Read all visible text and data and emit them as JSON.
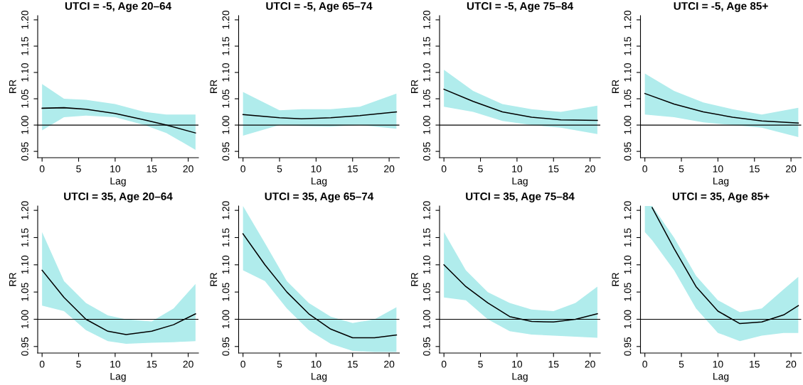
{
  "chart_data": [
    {
      "type": "line",
      "title": "UTCI = -5, Age 20–64",
      "xlabel": "Lag",
      "ylabel": "RR",
      "x": [
        0,
        3,
        6,
        10,
        14,
        17,
        21
      ],
      "xlim": [
        -0.6,
        21.4
      ],
      "ylim": [
        0.938,
        1.208
      ],
      "xticks": [
        0,
        5,
        10,
        15,
        20
      ],
      "yticks": [
        0.95,
        {
          "value": 1.0,
          "label": "1.00"
        },
        1.05,
        {
          "value": 1.1,
          "label": "1.10"
        },
        1.15,
        {
          "value": 1.2,
          "label": "1.20"
        }
      ],
      "grid": false,
      "ref_lines": [
        {
          "axis": "y",
          "value": 1,
          "color": "#000000"
        }
      ],
      "series": [
        {
          "color": "#000000",
          "values": [
            1.032,
            1.033,
            1.03,
            1.022,
            1.01,
            1.0,
            0.985
          ],
          "lower": [
            0.99,
            1.015,
            1.018,
            1.015,
            1.0,
            0.985,
            0.953
          ],
          "upper": [
            1.078,
            1.05,
            1.048,
            1.04,
            1.025,
            1.02,
            1.02
          ]
        }
      ]
    },
    {
      "type": "line",
      "title": "UTCI = -5, Age 65–74",
      "xlabel": "Lag",
      "ylabel": "RR",
      "x": [
        0,
        5,
        8,
        12,
        16,
        21
      ],
      "xlim": [
        -0.6,
        21.4
      ],
      "ylim": [
        0.938,
        1.208
      ],
      "xticks": [
        0,
        5,
        10,
        15,
        20
      ],
      "yticks": [
        0.95,
        {
          "value": 1.0,
          "label": "1.00"
        },
        1.05,
        {
          "value": 1.1,
          "label": "1.10"
        },
        1.15,
        {
          "value": 1.2,
          "label": "1.20"
        }
      ],
      "grid": false,
      "ref_lines": [
        {
          "axis": "y",
          "value": 1,
          "color": "#000000"
        }
      ],
      "series": [
        {
          "color": "#000000",
          "values": [
            1.02,
            1.014,
            1.012,
            1.014,
            1.018,
            1.025
          ],
          "lower": [
            0.98,
            1.0,
            0.998,
            0.997,
            1.0,
            0.993
          ],
          "upper": [
            1.063,
            1.028,
            1.03,
            1.03,
            1.035,
            1.06
          ]
        }
      ]
    },
    {
      "type": "line",
      "title": "UTCI = -5, Age 75–84",
      "xlabel": "Lag",
      "ylabel": "RR",
      "x": [
        0,
        4,
        8,
        12,
        16,
        21
      ],
      "xlim": [
        -0.6,
        21.4
      ],
      "ylim": [
        0.938,
        1.208
      ],
      "xticks": [
        0,
        5,
        10,
        15,
        20
      ],
      "yticks": [
        0.95,
        {
          "value": 1.0,
          "label": "1.00"
        },
        1.05,
        {
          "value": 1.1,
          "label": "1.10"
        },
        1.15,
        {
          "value": 1.2,
          "label": "1.20"
        }
      ],
      "grid": false,
      "ref_lines": [
        {
          "axis": "y",
          "value": 1,
          "color": "#000000"
        }
      ],
      "series": [
        {
          "color": "#000000",
          "values": [
            1.068,
            1.045,
            1.025,
            1.015,
            1.01,
            1.009
          ],
          "lower": [
            1.035,
            1.025,
            1.008,
            1.0,
            0.995,
            0.983
          ],
          "upper": [
            1.105,
            1.065,
            1.04,
            1.03,
            1.025,
            1.037
          ]
        }
      ]
    },
    {
      "type": "line",
      "title": "UTCI = -5, Age 85+",
      "xlabel": "Lag",
      "ylabel": "RR",
      "x": [
        0,
        4,
        8,
        12,
        16,
        21
      ],
      "xlim": [
        -0.6,
        21.4
      ],
      "ylim": [
        0.938,
        1.208
      ],
      "xticks": [
        0,
        5,
        10,
        15,
        20
      ],
      "yticks": [
        0.95,
        {
          "value": 1.0,
          "label": "1.00"
        },
        1.05,
        {
          "value": 1.1,
          "label": "1.10"
        },
        1.15,
        {
          "value": 1.2,
          "label": "1.20"
        }
      ],
      "grid": false,
      "ref_lines": [
        {
          "axis": "y",
          "value": 1,
          "color": "#000000"
        }
      ],
      "series": [
        {
          "color": "#000000",
          "values": [
            1.06,
            1.04,
            1.025,
            1.015,
            1.008,
            1.004
          ],
          "lower": [
            1.02,
            1.015,
            1.005,
            1.0,
            0.995,
            0.977
          ],
          "upper": [
            1.098,
            1.065,
            1.043,
            1.03,
            1.02,
            1.033
          ]
        }
      ]
    },
    {
      "type": "line",
      "title": "UTCI = 35, Age 20–64",
      "xlabel": "Lag",
      "ylabel": "RR",
      "x": [
        0,
        3,
        6,
        9,
        11.5,
        15,
        18,
        21
      ],
      "xlim": [
        -0.6,
        21.4
      ],
      "ylim": [
        0.938,
        1.208
      ],
      "xticks": [
        0,
        5,
        10,
        15,
        20
      ],
      "yticks": [
        0.95,
        {
          "value": 1.0,
          "label": "1.00"
        },
        1.05,
        {
          "value": 1.1,
          "label": "1.10"
        },
        1.15,
        {
          "value": 1.2,
          "label": "1.20"
        }
      ],
      "grid": false,
      "ref_lines": [
        {
          "axis": "y",
          "value": 1,
          "color": "#000000"
        }
      ],
      "series": [
        {
          "color": "#000000",
          "values": [
            1.09,
            1.04,
            1.0,
            0.978,
            0.972,
            0.978,
            0.99,
            1.01
          ],
          "lower": [
            1.025,
            1.015,
            0.98,
            0.96,
            0.955,
            0.957,
            0.958,
            0.96
          ],
          "upper": [
            1.16,
            1.07,
            1.03,
            1.007,
            1.0,
            0.996,
            1.02,
            1.065
          ]
        }
      ]
    },
    {
      "type": "line",
      "title": "UTCI = 35, Age 65–74",
      "xlabel": "Lag",
      "ylabel": "RR",
      "x": [
        0,
        3,
        6,
        9,
        12,
        15,
        18,
        21
      ],
      "xlim": [
        -0.6,
        21.4
      ],
      "ylim": [
        0.938,
        1.208
      ],
      "xticks": [
        0,
        5,
        10,
        15,
        20
      ],
      "yticks": [
        0.95,
        {
          "value": 1.0,
          "label": "1.00"
        },
        1.05,
        {
          "value": 1.1,
          "label": "1.10"
        },
        1.15,
        {
          "value": 1.2,
          "label": "1.20"
        }
      ],
      "grid": false,
      "ref_lines": [
        {
          "axis": "y",
          "value": 1,
          "color": "#000000"
        }
      ],
      "series": [
        {
          "color": "#000000",
          "values": [
            1.157,
            1.1,
            1.05,
            1.01,
            0.982,
            0.966,
            0.966,
            0.971
          ],
          "lower": [
            1.09,
            1.07,
            1.02,
            0.98,
            0.955,
            0.942,
            0.94,
            0.94
          ],
          "upper": [
            1.208,
            1.14,
            1.07,
            1.03,
            1.005,
            0.993,
            1.0,
            1.022
          ]
        }
      ]
    },
    {
      "type": "line",
      "title": "UTCI = 35, Age 75–84",
      "xlabel": "Lag",
      "ylabel": "RR",
      "x": [
        0,
        3,
        6,
        9,
        12,
        15,
        18,
        21
      ],
      "xlim": [
        -0.6,
        21.4
      ],
      "ylim": [
        0.938,
        1.208
      ],
      "xticks": [
        0,
        5,
        10,
        15,
        20
      ],
      "yticks": [
        0.95,
        {
          "value": 1.0,
          "label": "1.00"
        },
        1.05,
        {
          "value": 1.1,
          "label": "1.10"
        },
        1.15,
        {
          "value": 1.2,
          "label": "1.20"
        }
      ],
      "grid": false,
      "ref_lines": [
        {
          "axis": "y",
          "value": 1,
          "color": "#000000"
        }
      ],
      "series": [
        {
          "color": "#000000",
          "values": [
            1.1,
            1.06,
            1.03,
            1.005,
            0.996,
            0.995,
            1.0,
            1.01
          ],
          "lower": [
            1.04,
            1.035,
            1.0,
            0.978,
            0.972,
            0.97,
            0.968,
            0.966
          ],
          "upper": [
            1.16,
            1.09,
            1.05,
            1.03,
            1.018,
            1.015,
            1.03,
            1.06
          ]
        }
      ]
    },
    {
      "type": "line",
      "title": "UTCI = 35, Age 85+",
      "xlabel": "Lag",
      "ylabel": "RR",
      "x": [
        0,
        1,
        4,
        7,
        10,
        13,
        16,
        19,
        21
      ],
      "xlim": [
        -0.6,
        21.4
      ],
      "ylim": [
        0.938,
        1.208
      ],
      "xticks": [
        0,
        5,
        10,
        15,
        20
      ],
      "yticks": [
        0.95,
        {
          "value": 1.0,
          "label": "1.00"
        },
        1.05,
        {
          "value": 1.1,
          "label": "1.10"
        },
        1.15,
        {
          "value": 1.2,
          "label": "1.20"
        }
      ],
      "grid": false,
      "ref_lines": [
        {
          "axis": "y",
          "value": 1,
          "color": "#000000"
        }
      ],
      "series": [
        {
          "color": "#000000",
          "values": [
            null,
            1.205,
            1.13,
            1.06,
            1.015,
            0.992,
            0.995,
            1.008,
            1.025
          ],
          "lower": [
            1.16,
            1.145,
            1.09,
            1.02,
            0.975,
            0.96,
            0.97,
            0.975,
            0.975
          ],
          "upper": [
            1.208,
            1.208,
            1.15,
            1.08,
            1.035,
            1.013,
            1.02,
            1.055,
            1.078
          ]
        }
      ]
    }
  ]
}
